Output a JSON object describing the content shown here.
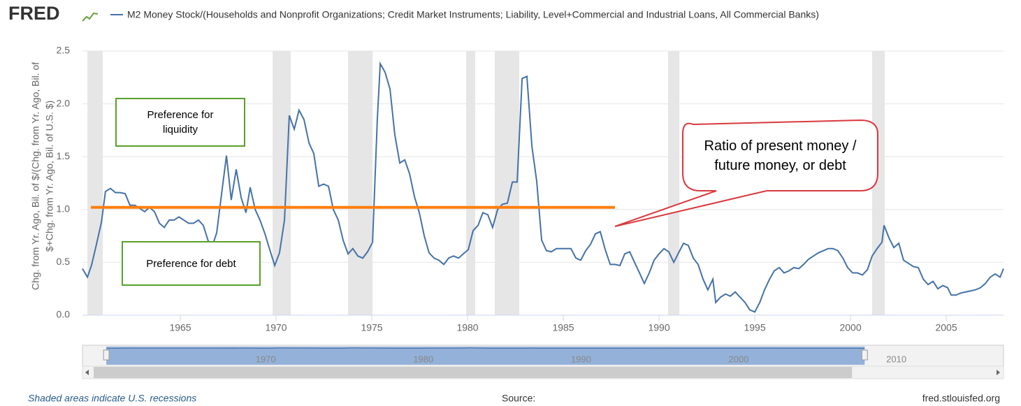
{
  "chart_data": {
    "type": "line",
    "logo": "FRED",
    "y_label": [
      "Chg. from Yr. Ago, Bil. of $/(Chg. from Yr. Ago, Bil. of",
      "$+Chg. from Yr. Ago, Bil. of U.S. $)"
    ],
    "footer_left": "Shaded areas indicate U.S. recessions",
    "footer_center": "Source:",
    "footer_right": "fred.stlouisfed.org",
    "xlim": [
      1959.89,
      2007.99
    ],
    "xticks": [
      1965,
      1970,
      1975,
      1980,
      1985,
      1990,
      1995,
      2000,
      2005
    ],
    "ylim": [
      0,
      2.5
    ],
    "yticks": [
      {
        "value": 0,
        "label": "0.0"
      },
      0.5,
      {
        "value": 1,
        "label": "1.0"
      },
      1.5,
      {
        "value": 2,
        "label": "2.0"
      },
      2.5
    ],
    "grid": true,
    "recessions": [
      [
        1960.15,
        1960.95
      ],
      [
        1969.82,
        1970.77
      ],
      [
        1973.76,
        1975.04
      ],
      [
        1979.93,
        1980.4
      ],
      [
        1981.42,
        1982.7
      ],
      [
        1990.47,
        1991.06
      ],
      [
        2001.13,
        2001.79
      ]
    ],
    "recession_color": "#e6e6e6",
    "x": [
      1959.89,
      1960.15,
      1960.36,
      1960.62,
      1960.88,
      1961.09,
      1961.35,
      1961.61,
      1961.86,
      1962.12,
      1962.37,
      1962.63,
      1962.88,
      1963.14,
      1963.39,
      1963.65,
      1963.91,
      1964.16,
      1964.42,
      1964.67,
      1964.93,
      1965.18,
      1965.44,
      1965.69,
      1965.95,
      1966.2,
      1966.46,
      1966.72,
      1966.9,
      1967.15,
      1967.41,
      1967.66,
      1967.92,
      1968.18,
      1968.43,
      1968.65,
      1968.91,
      1969.16,
      1969.42,
      1969.67,
      1969.93,
      1970.18,
      1970.44,
      1970.69,
      1970.95,
      1971.2,
      1971.46,
      1971.72,
      1971.97,
      1972.23,
      1972.48,
      1972.74,
      1972.99,
      1973.25,
      1973.5,
      1973.76,
      1974.01,
      1974.27,
      1974.53,
      1974.78,
      1975.04,
      1975.29,
      1975.44,
      1975.69,
      1975.95,
      1976.2,
      1976.46,
      1976.72,
      1976.97,
      1977.23,
      1977.48,
      1977.74,
      1977.99,
      1978.25,
      1978.5,
      1978.76,
      1979.01,
      1979.27,
      1979.53,
      1979.78,
      1980.04,
      1980.29,
      1980.55,
      1980.8,
      1981.06,
      1981.31,
      1981.57,
      1981.82,
      1982.08,
      1982.34,
      1982.59,
      1982.85,
      1983.1,
      1983.36,
      1983.61,
      1983.87,
      1984.12,
      1984.38,
      1984.64,
      1984.89,
      1985.15,
      1985.4,
      1985.66,
      1985.91,
      1986.17,
      1986.42,
      1986.68,
      1986.93,
      1987.19,
      1987.45,
      1987.7,
      1987.96,
      1988.21,
      1988.47,
      1988.72,
      1988.98,
      1989.23,
      1989.49,
      1989.74,
      1990.0,
      1990.26,
      1990.51,
      1990.77,
      1991.02,
      1991.28,
      1991.53,
      1991.79,
      1992.04,
      1992.3,
      1992.55,
      1992.81,
      1992.96,
      1993.21,
      1993.47,
      1993.72,
      1993.98,
      1994.23,
      1994.49,
      1994.74,
      1995.0,
      1995.26,
      1995.51,
      1995.77,
      1996.02,
      1996.28,
      1996.53,
      1996.79,
      1997.04,
      1997.3,
      1997.55,
      1997.81,
      1998.07,
      1998.32,
      1998.58,
      1998.83,
      1999.09,
      1999.34,
      1999.6,
      1999.85,
      2000.11,
      2000.36,
      2000.62,
      2000.88,
      2001.13,
      2001.39,
      2001.64,
      2001.75,
      2002.01,
      2002.26,
      2002.52,
      2002.77,
      2003.03,
      2003.28,
      2003.54,
      2003.8,
      2004.05,
      2004.31,
      2004.56,
      2004.82,
      2005.07,
      2005.26,
      2005.51,
      2005.77,
      2006.02,
      2006.28,
      2006.53,
      2006.79,
      2007.04,
      2007.3,
      2007.55,
      2007.81,
      2007.99
    ],
    "series": [
      {
        "name": "M2 Money Stock/(Households and Nonprofit Organizations; Credit Market Instruments; Liability, Level+Commercial and Industrial Loans, All Commercial Banks)",
        "color": "#4572a7",
        "values": [
          0.44,
          0.36,
          0.47,
          0.67,
          0.88,
          1.17,
          1.2,
          1.16,
          1.16,
          1.15,
          1.04,
          1.04,
          1.01,
          0.98,
          1.02,
          0.98,
          0.87,
          0.83,
          0.9,
          0.9,
          0.93,
          0.9,
          0.87,
          0.87,
          0.9,
          0.85,
          0.7,
          0.68,
          0.78,
          1.14,
          1.51,
          1.09,
          1.38,
          1.11,
          0.97,
          1.21,
          1.0,
          0.9,
          0.77,
          0.62,
          0.47,
          0.59,
          0.9,
          1.89,
          1.76,
          1.94,
          1.85,
          1.63,
          1.53,
          1.22,
          1.24,
          1.22,
          1.0,
          0.9,
          0.71,
          0.58,
          0.63,
          0.56,
          0.54,
          0.6,
          0.69,
          1.86,
          2.38,
          2.3,
          2.14,
          1.71,
          1.44,
          1.47,
          1.34,
          1.12,
          0.97,
          0.75,
          0.59,
          0.54,
          0.52,
          0.48,
          0.54,
          0.56,
          0.54,
          0.58,
          0.62,
          0.8,
          0.85,
          0.97,
          0.95,
          0.83,
          1.0,
          1.05,
          1.06,
          1.26,
          1.26,
          2.24,
          2.26,
          1.6,
          1.27,
          0.71,
          0.61,
          0.6,
          0.63,
          0.63,
          0.63,
          0.63,
          0.54,
          0.52,
          0.61,
          0.67,
          0.77,
          0.79,
          0.62,
          0.48,
          0.48,
          0.47,
          0.58,
          0.6,
          0.5,
          0.4,
          0.3,
          0.4,
          0.52,
          0.58,
          0.63,
          0.6,
          0.5,
          0.59,
          0.68,
          0.66,
          0.54,
          0.48,
          0.34,
          0.24,
          0.34,
          0.12,
          0.17,
          0.2,
          0.18,
          0.22,
          0.17,
          0.12,
          0.05,
          0.03,
          0.12,
          0.24,
          0.34,
          0.42,
          0.45,
          0.4,
          0.42,
          0.45,
          0.44,
          0.48,
          0.53,
          0.56,
          0.59,
          0.61,
          0.63,
          0.63,
          0.61,
          0.54,
          0.45,
          0.4,
          0.4,
          0.38,
          0.43,
          0.56,
          0.63,
          0.69,
          0.85,
          0.73,
          0.64,
          0.68,
          0.52,
          0.49,
          0.46,
          0.45,
          0.34,
          0.29,
          0.32,
          0.25,
          0.28,
          0.26,
          0.19,
          0.19,
          0.21,
          0.22,
          0.23,
          0.24,
          0.26,
          0.3,
          0.36,
          0.39,
          0.36,
          0.44
        ]
      }
    ],
    "reference_line": {
      "value": 1.02,
      "x": [
        1960.33,
        1987.7
      ],
      "color": "#ff7f0e"
    },
    "annotations": [
      {
        "text": "Preference for liquidity",
        "border": "#5aa02c"
      },
      {
        "text": "Preference for debt",
        "border": "#5aa02c"
      },
      {
        "text": "Ratio of present money / future money, or debt",
        "border": "#d9393e",
        "points_to": [
          1987.7,
          0.84
        ]
      }
    ],
    "navigator": {
      "xlim": [
        1959.0,
        2016.0
      ],
      "ticks": [
        1970,
        1980,
        1990,
        2000,
        2010
      ]
    }
  }
}
